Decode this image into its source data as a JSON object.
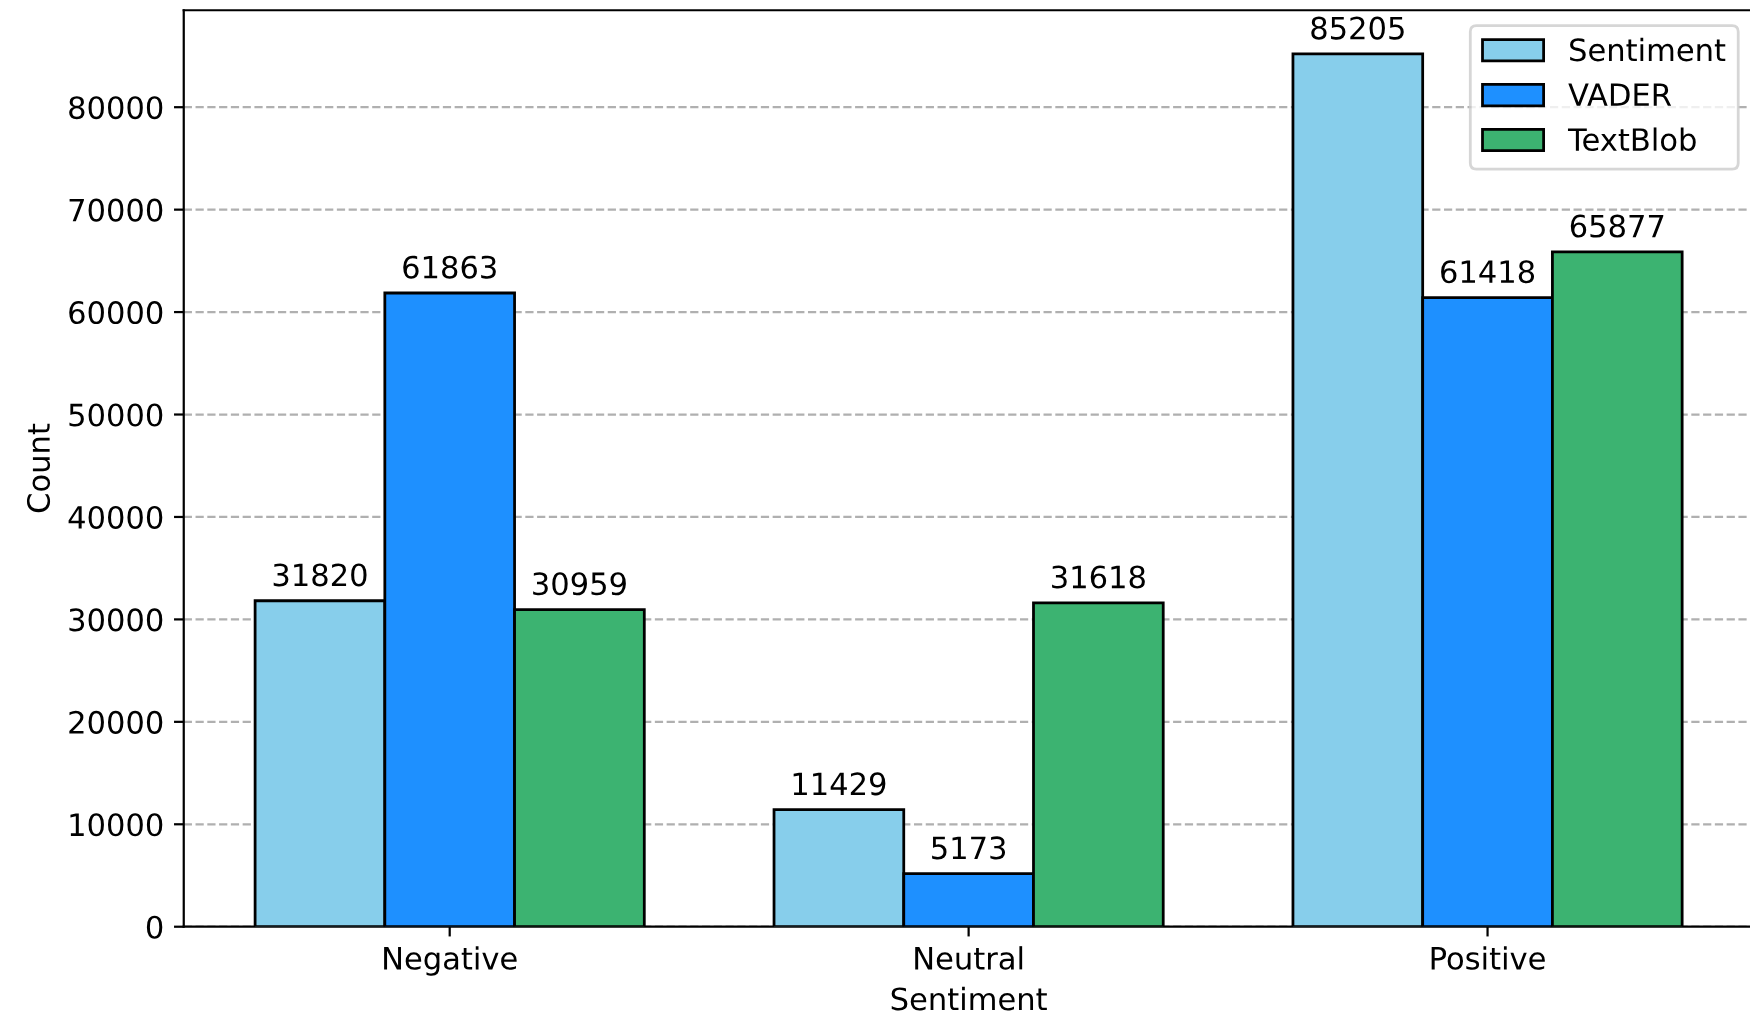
{
  "chart_data": {
    "type": "bar",
    "xlabel": "Sentiment",
    "ylabel": "Count",
    "categories": [
      "Negative",
      "Neutral",
      "Positive"
    ],
    "series": [
      {
        "name": "Sentiment",
        "color": "#87ceeb",
        "values": [
          31820,
          11429,
          85205
        ]
      },
      {
        "name": "VADER",
        "color": "#1e90ff",
        "values": [
          61863,
          5173,
          61418
        ]
      },
      {
        "name": "TextBlob",
        "color": "#3cb371",
        "values": [
          30959,
          31618,
          65877
        ]
      }
    ],
    "ylim": [
      0,
      89465
    ],
    "yticks": [
      0,
      10000,
      20000,
      30000,
      40000,
      50000,
      60000,
      70000,
      80000
    ],
    "grid": "y",
    "legend": "top right",
    "data_labels": true
  }
}
